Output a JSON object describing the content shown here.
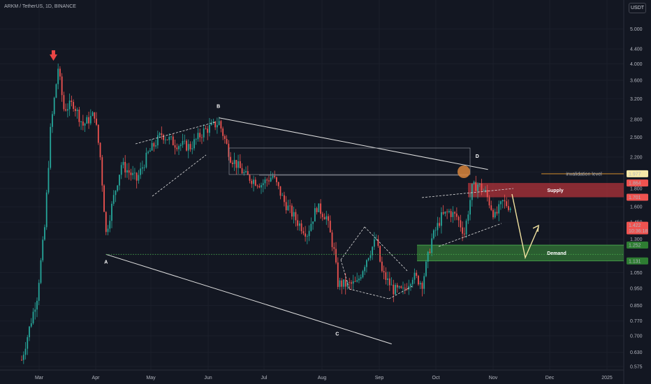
{
  "header": {
    "symbol_title": "ARKM / TetherUS, 1D, BINANCE",
    "currency_label": "USDT"
  },
  "colors": {
    "background": "#131722",
    "candle_up": "#26a69a",
    "candle_down": "#ef5350",
    "supply_zone": "#9e2f36",
    "demand_zone": "#2f6b33",
    "forecast_arrow": "#f2e3a0",
    "invalidation_line": "#f0a030",
    "marker_arrow": "#e84545",
    "point_d_circle": "#d9853b"
  },
  "chart_data": {
    "type": "candlestick",
    "pair": "ARKM / TetherUS",
    "timeframe": "1D",
    "exchange": "BINANCE",
    "y_scale": "log",
    "ylim": [
      0.56,
      5.8
    ],
    "y_ticks": [
      "5.000",
      "4.400",
      "4.000",
      "3.600",
      "3.200",
      "2.800",
      "2.500",
      "2.200",
      "2.000",
      "1.800",
      "1.600",
      "1.450",
      "1.300",
      "1.050",
      "0.950",
      "0.850",
      "0.770",
      "0.700",
      "0.630",
      "0.575"
    ],
    "x_ticks": [
      "Mar",
      "Apr",
      "May",
      "Jun",
      "Jul",
      "Aug",
      "Sep",
      "Oct",
      "Nov",
      "Dec",
      "2025"
    ],
    "price_tags": [
      {
        "value": "1.977",
        "style": "yellow"
      },
      {
        "value": "1.864",
        "style": "red"
      },
      {
        "value": "1.701",
        "style": "red"
      },
      {
        "value": "1.422",
        "style": "red",
        "subtext": "10:36:18"
      },
      {
        "value": "1.252",
        "style": "green"
      },
      {
        "value": "1.131",
        "style": "green"
      }
    ],
    "wave_points": [
      {
        "label": "A",
        "date": "Apr 6",
        "price": 1.18
      },
      {
        "label": "B",
        "date": "Jun 4",
        "price": 2.83
      },
      {
        "label": "C",
        "date": "Aug 5",
        "price": 0.74
      },
      {
        "label": "D",
        "date": "Oct 16",
        "price": 2.02
      }
    ],
    "zones": [
      {
        "label": "Supply",
        "low": 1.701,
        "high": 1.864
      },
      {
        "label": "Demand",
        "low": 1.131,
        "high": 1.252
      }
    ],
    "invalidation": {
      "label": "invalidation level",
      "price": 1.977
    },
    "candles_summary": [
      {
        "date": "Feb 22",
        "price": 0.6
      },
      {
        "date": "Mar 1",
        "price": 0.9
      },
      {
        "date": "Mar 5",
        "price": 1.4
      },
      {
        "date": "Mar 8",
        "price": 2.6
      },
      {
        "date": "Mar 12",
        "price": 3.9
      },
      {
        "date": "Mar 15",
        "price": 3.0
      },
      {
        "date": "Mar 20",
        "price": 3.1
      },
      {
        "date": "Mar 25",
        "price": 2.7
      },
      {
        "date": "Mar 31",
        "price": 2.9
      },
      {
        "date": "Apr 3",
        "price": 2.2
      },
      {
        "date": "Apr 6",
        "price": 1.35
      },
      {
        "date": "Apr 10",
        "price": 1.7
      },
      {
        "date": "Apr 14",
        "price": 2.1
      },
      {
        "date": "Apr 22",
        "price": 1.9
      },
      {
        "date": "Apr 28",
        "price": 2.25
      },
      {
        "date": "May 5",
        "price": 2.55
      },
      {
        "date": "May 12",
        "price": 2.4
      },
      {
        "date": "May 20",
        "price": 2.35
      },
      {
        "date": "May 27",
        "price": 2.6
      },
      {
        "date": "Jun 4",
        "price": 2.75
      },
      {
        "date": "Jun 10",
        "price": 2.2
      },
      {
        "date": "Jun 18",
        "price": 1.95
      },
      {
        "date": "Jun 26",
        "price": 1.85
      },
      {
        "date": "Jul 2",
        "price": 1.95
      },
      {
        "date": "Jul 8",
        "price": 1.65
      },
      {
        "date": "Jul 15",
        "price": 1.45
      },
      {
        "date": "Jul 20",
        "price": 1.35
      },
      {
        "date": "Jul 25",
        "price": 1.6
      },
      {
        "date": "Jul 30",
        "price": 1.5
      },
      {
        "date": "Aug 3",
        "price": 1.2
      },
      {
        "date": "Aug 5",
        "price": 0.98
      },
      {
        "date": "Aug 10",
        "price": 0.97
      },
      {
        "date": "Aug 15",
        "price": 0.98
      },
      {
        "date": "Aug 20",
        "price": 1.15
      },
      {
        "date": "Aug 25",
        "price": 1.3
      },
      {
        "date": "Aug 28",
        "price": 1.05
      },
      {
        "date": "Sep 3",
        "price": 0.94
      },
      {
        "date": "Sep 8",
        "price": 0.93
      },
      {
        "date": "Sep 13",
        "price": 1.03
      },
      {
        "date": "Sep 18",
        "price": 0.98
      },
      {
        "date": "Sep 23",
        "price": 1.3
      },
      {
        "date": "Sep 28",
        "price": 1.5
      },
      {
        "date": "Oct 2",
        "price": 1.55
      },
      {
        "date": "Oct 6",
        "price": 1.5
      },
      {
        "date": "Oct 10",
        "price": 1.35
      },
      {
        "date": "Oct 14",
        "price": 1.8
      },
      {
        "date": "Oct 17",
        "price": 1.85
      },
      {
        "date": "Oct 21",
        "price": 1.75
      },
      {
        "date": "Oct 26",
        "price": 1.5
      },
      {
        "date": "Oct 30",
        "price": 1.65
      },
      {
        "date": "Nov 3",
        "price": 1.6
      }
    ]
  }
}
